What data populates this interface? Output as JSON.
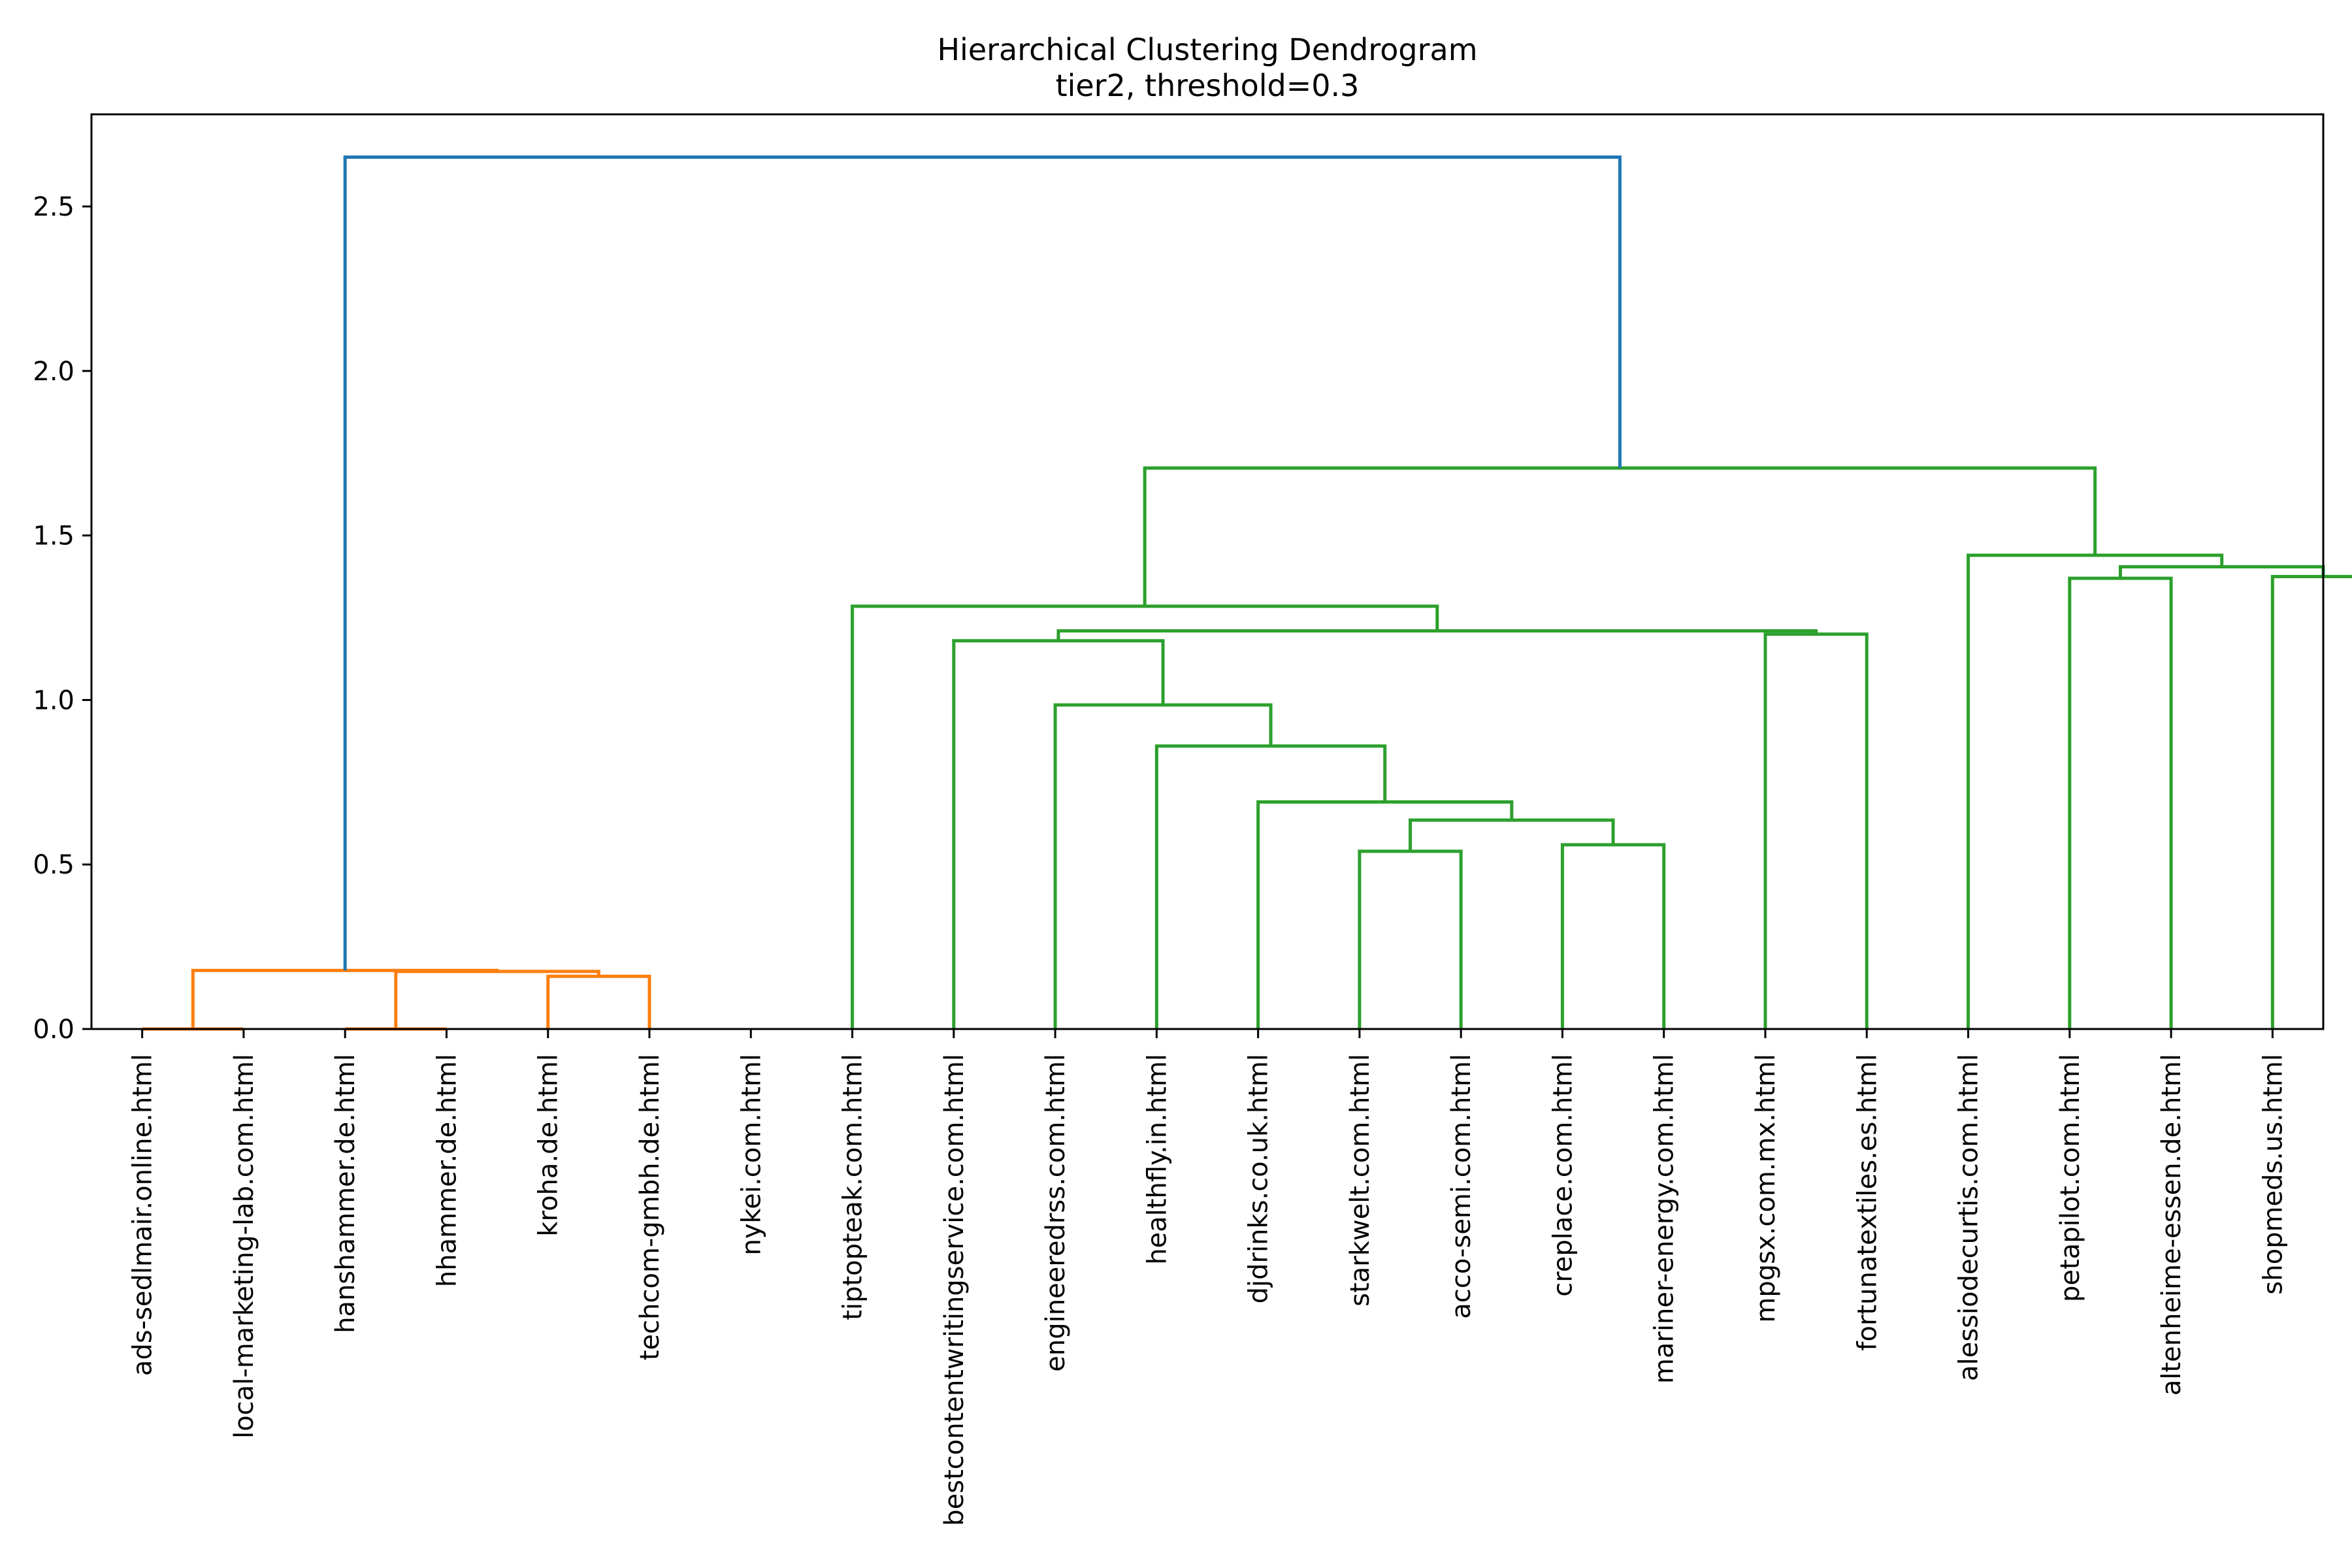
{
  "chart_data": {
    "type": "dendrogram",
    "title": "Hierarchical Clustering Dendrogram",
    "subtitle": "tier2, threshold=0.3",
    "xlabel": "",
    "ylabel": "",
    "ylim": [
      0,
      2.78
    ],
    "yticks": [
      0.0,
      0.5,
      1.0,
      1.5,
      2.0,
      2.5
    ],
    "ytick_labels": [
      "0.0",
      "0.5",
      "1.0",
      "1.5",
      "2.0",
      "2.5"
    ],
    "grid": false,
    "leaves": [
      "ads-sedlmair.online.html",
      "local-marketing-lab.com.html",
      "hanshammer.de.html",
      "hhammer.de.html",
      "kroha.de.html",
      "techcom-gmbh.de.html",
      "nykei.com.html",
      "tiptopteak.com.html",
      "bestcontentwritingservice.com.html",
      "engineeredrss.com.html",
      "healthfly.in.html",
      "djdrinks.co.uk.html",
      "starkwelt.com.html",
      "acco-semi.com.html",
      "creplace.com.html",
      "mariner-energy.com.html",
      "mpgsx.com.mx.html",
      "fortunatextiles.es.html",
      "alessiodecurtis.com.html",
      "petapilot.com.html",
      "altenheime-essen.de.html",
      "shopmeds.us.html"
    ],
    "links": [
      {
        "icoord": [
          5,
          5,
          15,
          15
        ],
        "dcoord": [
          0.0,
          0.0,
          0.0,
          0.0
        ],
        "color": "#ff7f0e"
      },
      {
        "icoord": [
          25,
          25,
          35,
          35
        ],
        "dcoord": [
          0.0,
          0.0,
          0.0,
          0.0
        ],
        "color": "#ff7f0e"
      },
      {
        "icoord": [
          45,
          45,
          55,
          55
        ],
        "dcoord": [
          0.0,
          0.16,
          0.16,
          0.0
        ],
        "color": "#ff7f0e"
      },
      {
        "icoord": [
          30,
          30,
          50,
          50
        ],
        "dcoord": [
          0.0,
          0.175,
          0.175,
          0.16
        ],
        "color": "#ff7f0e"
      },
      {
        "icoord": [
          10,
          10,
          40,
          40
        ],
        "dcoord": [
          0.0,
          0.178,
          0.178,
          0.175
        ],
        "color": "#ff7f0e"
      },
      {
        "icoord": [
          125,
          125,
          135,
          135
        ],
        "dcoord": [
          0.0,
          0.54,
          0.54,
          0.0
        ],
        "color": "#2ca02c"
      },
      {
        "icoord": [
          145,
          145,
          155,
          155
        ],
        "dcoord": [
          0.0,
          0.56,
          0.56,
          0.0
        ],
        "color": "#2ca02c"
      },
      {
        "icoord": [
          130,
          130,
          150,
          150
        ],
        "dcoord": [
          0.54,
          0.635,
          0.635,
          0.56
        ],
        "color": "#2ca02c"
      },
      {
        "icoord": [
          115,
          115,
          140,
          140
        ],
        "dcoord": [
          0.0,
          0.69,
          0.69,
          0.635
        ],
        "color": "#2ca02c"
      },
      {
        "icoord": [
          105,
          105,
          127.5,
          127.5
        ],
        "dcoord": [
          0.0,
          0.86,
          0.86,
          0.69
        ],
        "color": "#2ca02c"
      },
      {
        "icoord": [
          95,
          95,
          116.25,
          116.25
        ],
        "dcoord": [
          0.0,
          0.985,
          0.985,
          0.86
        ],
        "color": "#2ca02c"
      },
      {
        "icoord": [
          85,
          85,
          105.625,
          105.625
        ],
        "dcoord": [
          0.0,
          1.18,
          1.18,
          0.985
        ],
        "color": "#2ca02c"
      },
      {
        "icoord": [
          165,
          165,
          175,
          175
        ],
        "dcoord": [
          0.0,
          1.2,
          1.2,
          0.0
        ],
        "color": "#2ca02c"
      },
      {
        "icoord": [
          95.3125,
          95.3125,
          170,
          170
        ],
        "dcoord": [
          1.18,
          1.21,
          1.21,
          1.2
        ],
        "color": "#2ca02c"
      },
      {
        "icoord": [
          75,
          75,
          132.65625,
          132.65625
        ],
        "dcoord": [
          0.0,
          1.285,
          1.285,
          1.21
        ],
        "color": "#2ca02c"
      },
      {
        "icoord": [
          195,
          195,
          205,
          205
        ],
        "dcoord": [
          0.0,
          1.37,
          1.37,
          0.0
        ],
        "color": "#2ca02c"
      },
      {
        "icoord": [
          215,
          215,
          225,
          225
        ],
        "dcoord": [
          0.0,
          1.375,
          1.375,
          0.0
        ],
        "color": "#2ca02c"
      },
      {
        "icoord": [
          200,
          200,
          220,
          220
        ],
        "dcoord": [
          1.37,
          1.405,
          1.405,
          1.375
        ],
        "color": "#2ca02c"
      },
      {
        "icoord": [
          185,
          185,
          210,
          210
        ],
        "dcoord": [
          0.0,
          1.44,
          1.44,
          1.405
        ],
        "color": "#2ca02c"
      },
      {
        "icoord": [
          103.828125,
          103.828125,
          197.5,
          197.5
        ],
        "dcoord": [
          1.285,
          1.705,
          1.705,
          1.44
        ],
        "color": "#2ca02c"
      },
      {
        "icoord": [
          25,
          25,
          150.6640625,
          150.6640625
        ],
        "dcoord": [
          0.178,
          2.65,
          2.65,
          1.705
        ],
        "color": "#1f77b4"
      }
    ]
  }
}
